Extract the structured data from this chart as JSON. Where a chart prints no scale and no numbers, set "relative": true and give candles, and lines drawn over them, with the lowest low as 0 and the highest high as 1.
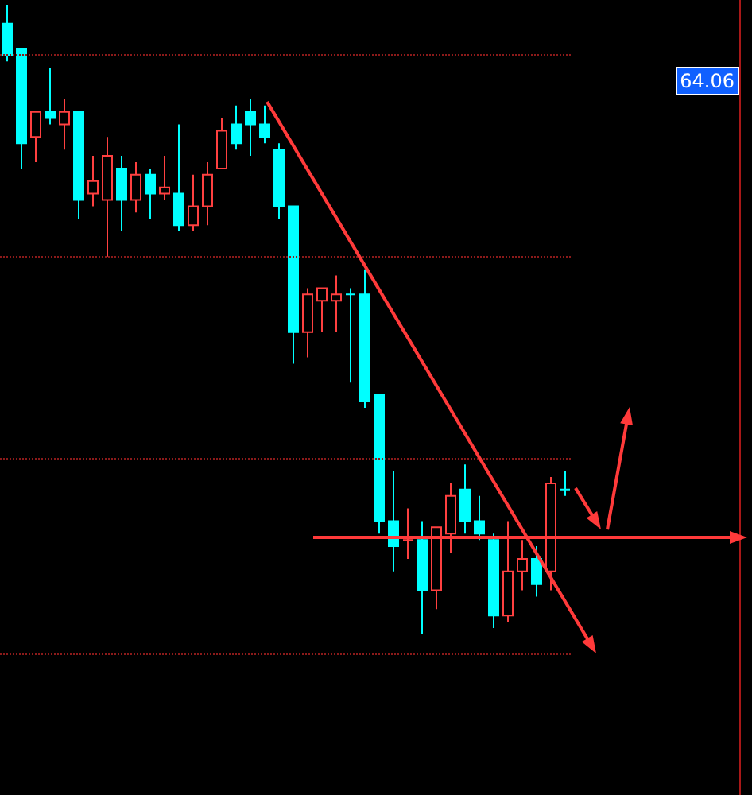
{
  "chart_data": {
    "type": "candlestick",
    "relative": true,
    "categories": [
      null,
      null,
      null,
      null,
      null,
      null,
      null,
      null,
      null,
      null,
      null,
      null,
      null,
      null,
      null,
      null,
      null,
      null,
      null,
      null,
      null,
      null,
      null,
      null,
      null,
      null,
      null,
      null,
      null,
      null,
      null,
      null,
      null,
      null,
      null,
      null,
      null,
      null,
      null,
      null
    ],
    "ohlc": [
      [
        0.97,
        1,
        0.91,
        0.92
      ],
      [
        0.93,
        0.93,
        0.74,
        0.78
      ],
      [
        0.79,
        0.83,
        0.75,
        0.83
      ],
      [
        0.83,
        0.9,
        0.81,
        0.82
      ],
      [
        0.81,
        0.85,
        0.77,
        0.83
      ],
      [
        0.83,
        0.83,
        0.66,
        0.69
      ],
      [
        0.7,
        0.76,
        0.68,
        0.72
      ],
      [
        0.69,
        0.79,
        0.6,
        0.76
      ],
      [
        0.74,
        0.76,
        0.64,
        0.69
      ],
      [
        0.69,
        0.75,
        0.67,
        0.73
      ],
      [
        0.73,
        0.74,
        0.66,
        0.7
      ],
      [
        0.7,
        0.76,
        0.69,
        0.71
      ],
      [
        0.7,
        0.81,
        0.64,
        0.65
      ],
      [
        0.65,
        0.73,
        0.64,
        0.68
      ],
      [
        0.68,
        0.75,
        0.65,
        0.73
      ],
      [
        0.74,
        0.82,
        0.74,
        0.8
      ],
      [
        0.81,
        0.84,
        0.77,
        0.78
      ],
      [
        0.83,
        0.85,
        0.76,
        0.81
      ],
      [
        0.81,
        0.84,
        0.78,
        0.79
      ],
      [
        0.77,
        0.78,
        0.66,
        0.68
      ],
      [
        0.68,
        0.68,
        0.43,
        0.48
      ],
      [
        0.48,
        0.55,
        0.44,
        0.54
      ],
      [
        0.53,
        0.55,
        0.48,
        0.55
      ],
      [
        0.53,
        0.57,
        0.48,
        0.54
      ],
      [
        0.54,
        0.55,
        0.4,
        0.54
      ],
      [
        0.54,
        0.58,
        0.36,
        0.37
      ],
      [
        0.38,
        0.38,
        0.16,
        0.18
      ],
      [
        0.18,
        0.26,
        0.1,
        0.14
      ],
      [
        0.15,
        0.2,
        0.12,
        0.15
      ],
      [
        0.15,
        0.18,
        0,
        0.07
      ],
      [
        0.07,
        0.17,
        0.04,
        0.17
      ],
      [
        0.16,
        0.24,
        0.13,
        0.22
      ],
      [
        0.23,
        0.27,
        0.16,
        0.18
      ],
      [
        0.18,
        0.22,
        0.15,
        0.16
      ],
      [
        0.15,
        0.16,
        0.01,
        0.03
      ],
      [
        0.03,
        0.18,
        0.02,
        0.1
      ],
      [
        0.1,
        0.15,
        0.07,
        0.12
      ],
      [
        0.12,
        0.14,
        0.06,
        0.08
      ],
      [
        0.1,
        0.25,
        0.07,
        0.24
      ],
      [
        0.23,
        0.26,
        0.22,
        0.23
      ]
    ],
    "colors": [
      "#00ffff",
      "#00ffff",
      "#ff4040",
      "#00ffff",
      "#ff4040",
      "#00ffff",
      "#ff4040",
      "#ff4040",
      "#00ffff",
      "#ff4040",
      "#00ffff",
      "#ff4040",
      "#00ffff",
      "#ff4040",
      "#ff4040",
      "#ff4040",
      "#00ffff",
      "#00ffff",
      "#00ffff",
      "#00ffff",
      "#00ffff",
      "#ff4040",
      "#ff4040",
      "#ff4040",
      "#00ffff",
      "#00ffff",
      "#00ffff",
      "#00ffff",
      "#ff4040",
      "#00ffff",
      "#ff4040",
      "#ff4040",
      "#00ffff",
      "#00ffff",
      "#00ffff",
      "#ff4040",
      "#ff4040",
      "#00ffff",
      "#ff4040",
      "#00ffff"
    ],
    "ref_lines": [
      {
        "axis": "y",
        "value": 0.92,
        "color": "#8b1a1a",
        "line_style": "dotted"
      },
      {
        "axis": "y",
        "value": 0.6,
        "color": "#8b1a1a",
        "line_style": "dotted"
      },
      {
        "axis": "y",
        "value": 0.28,
        "color": "#8b1a1a",
        "line_style": "dotted"
      },
      {
        "axis": "y",
        "value": -0.03,
        "color": "#8b1a1a",
        "line_style": "dotted"
      }
    ],
    "annotations": [
      "64.06"
    ]
  }
}
